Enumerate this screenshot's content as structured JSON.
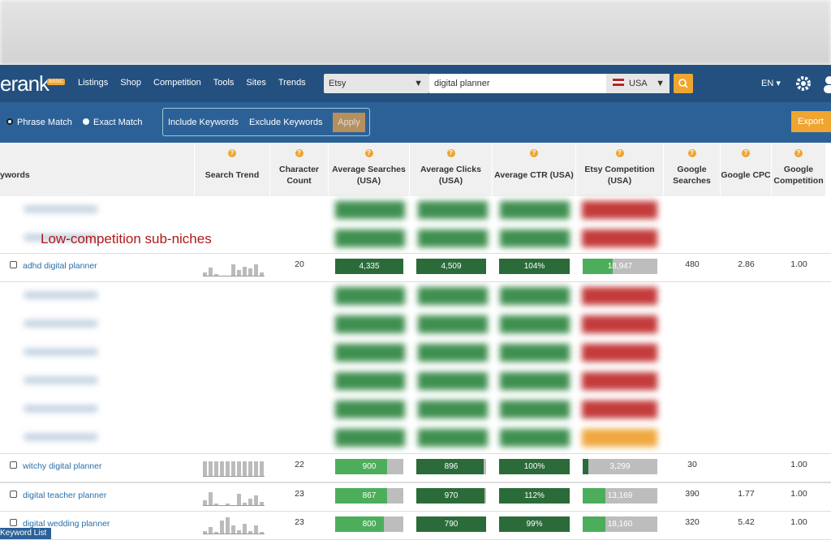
{
  "nav": {
    "logo": "erank",
    "badge": "BASIC",
    "links": [
      "Listings",
      "Shop",
      "Competition",
      "Tools",
      "Sites",
      "Trends"
    ],
    "platform": "Etsy",
    "search": "digital planner",
    "country": "USA",
    "language": "EN"
  },
  "filters": {
    "phrase": "Phrase Match",
    "exact": "Exact Match",
    "include": "Include Keywords",
    "exclude": "Exclude Keywords",
    "apply": "Apply",
    "export": "Export"
  },
  "table": {
    "headers": [
      "ywords",
      "Search Trend",
      "Character Count",
      "Average Searches (USA)",
      "Average Clicks (USA)",
      "Average CTR (USA)",
      "Etsy Competition (USA)",
      "Google Searches",
      "Google CPC",
      "Google Competition"
    ],
    "rows": [
      [
        "adhd digital planner",
        "20",
        "4,335",
        "4,509",
        "104%",
        "18,947",
        "480",
        "2.86",
        "1.00"
      ],
      [
        "witchy digital planner",
        "22",
        "900",
        "896",
        "100%",
        "3,299",
        "30",
        null,
        "1.00"
      ],
      [
        "digital teacher planner",
        "23",
        "867",
        "970",
        "112%",
        "13,169",
        "390",
        "1.77",
        "1.00"
      ],
      [
        "digital wedding planner",
        "23",
        "800",
        "790",
        "99%",
        "18,160",
        "320",
        "5.42",
        "1.00"
      ]
    ]
  },
  "annotation": "Low-competition sub-niches",
  "footer": "Keyword List"
}
